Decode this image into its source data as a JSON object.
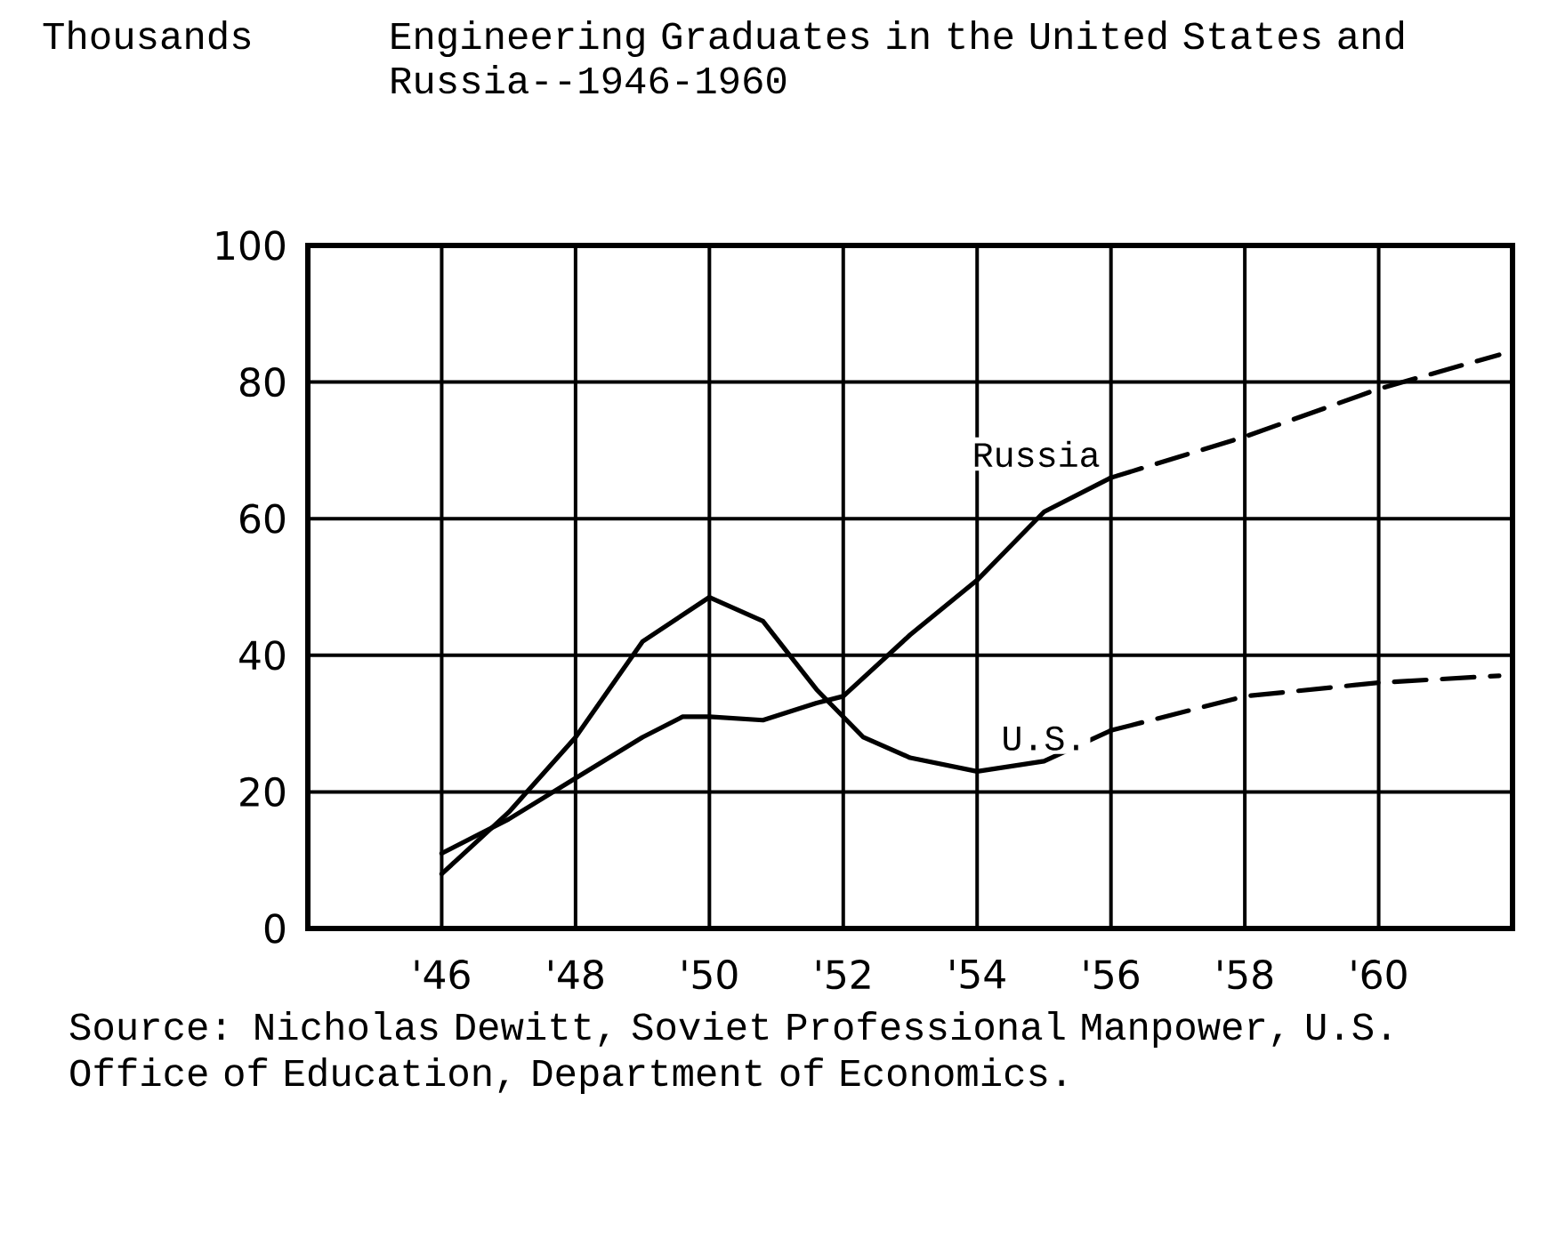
{
  "chart_data": {
    "type": "line",
    "title": "Engineering Graduates in the United States and Russia--1946-1960",
    "ylabel": "Thousands",
    "annotations": [
      "Source: Nicholas Dewitt, Soviet Professional Manpower, U.S. Office of Education, Department of Economics."
    ],
    "series": [
      {
        "name": "Russia",
        "color": "#000000",
        "line_style": "solid",
        "x": [
          1946,
          1947,
          1948,
          1949,
          1949.6,
          1950,
          1950.8,
          1951.6,
          1952,
          1953,
          1954,
          1954.6,
          1955,
          1956
        ],
        "values": [
          11,
          16,
          22,
          28,
          31,
          31,
          30.5,
          33,
          34,
          43,
          51,
          57,
          61,
          66
        ]
      },
      {
        "color": "#000000",
        "line_style": "dashed",
        "x": [
          1956,
          1958,
          1960,
          1961.8
        ],
        "values": [
          66,
          72,
          79,
          84
        ]
      },
      {
        "name": "U.S.",
        "color": "#000000",
        "line_style": "solid",
        "x": [
          1946,
          1947,
          1948,
          1949,
          1950,
          1950.8,
          1951.6,
          1952.3,
          1953,
          1954,
          1955,
          1956
        ],
        "values": [
          8,
          17,
          28,
          42,
          48.5,
          45,
          35,
          28,
          25,
          23,
          24.5,
          29
        ]
      },
      {
        "color": "#000000",
        "line_style": "dashed",
        "x": [
          1956,
          1958,
          1960,
          1961.8
        ],
        "values": [
          29,
          34,
          36,
          37
        ]
      }
    ],
    "xlim": [
      1944,
      1962
    ],
    "ylim": [
      0,
      100
    ],
    "xticks": [
      {
        "value": 1946,
        "label": "'46"
      },
      {
        "value": 1948,
        "label": "'48"
      },
      {
        "value": 1950,
        "label": "'50"
      },
      {
        "value": 1952,
        "label": "'52"
      },
      {
        "value": 1954,
        "label": "'54"
      },
      {
        "value": 1956,
        "label": "'56"
      },
      {
        "value": 1958,
        "label": "'58"
      },
      {
        "value": 1960,
        "label": "'60"
      }
    ],
    "yticks": [
      0,
      20,
      40,
      60,
      80,
      100
    ],
    "grid": true,
    "legend": false
  }
}
